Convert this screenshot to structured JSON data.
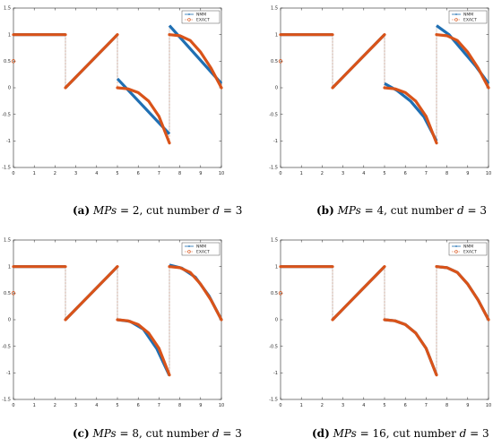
{
  "figure": {
    "legend_position": "top-right",
    "grid": false,
    "series_colors": {
      "NMM": "#1f6fb3",
      "EXACT": "#d95319"
    }
  },
  "captions": [
    {
      "label": "(a)",
      "math": "MPs",
      "rest": " = 2, cut number ",
      "d": "d",
      "value": " = 3"
    },
    {
      "label": "(b)",
      "math": "MPs",
      "rest": " = 4, cut number ",
      "d": "d",
      "value": " = 3"
    },
    {
      "label": "(c)",
      "math": "MPs",
      "rest": " = 8, cut number ",
      "d": "d",
      "value": " = 3"
    },
    {
      "label": "(d)",
      "math": "MPs",
      "rest": " = 16, cut number ",
      "d": "d",
      "value": " = 3"
    }
  ],
  "chart_data": [
    {
      "type": "line",
      "xlim": [
        0,
        10
      ],
      "ylim": [
        -1.5,
        1.5
      ],
      "xticks": [
        "0",
        "1",
        "2",
        "3",
        "4",
        "5",
        "6",
        "7",
        "8",
        "9",
        "10"
      ],
      "yticks": [
        "-1.5",
        "-1",
        "-0.5",
        "0",
        "0.5",
        "1",
        "1.5"
      ],
      "legend": [
        "NMM",
        "EXACT"
      ],
      "series": [
        {
          "name": "NMM",
          "segments": [
            [
              [
                0,
                1
              ],
              [
                2.5,
                1
              ]
            ],
            [
              [
                2.5,
                0
              ],
              [
                5,
                1
              ]
            ],
            [
              [
                5,
                0.17
              ],
              [
                7.5,
                -0.87
              ]
            ],
            [
              [
                7.5,
                1.17
              ],
              [
                10,
                0.08
              ]
            ]
          ]
        },
        {
          "name": "EXACT",
          "segments": [
            [
              [
                0,
                1
              ],
              [
                2.5,
                1
              ]
            ],
            [
              [
                2.5,
                0
              ],
              [
                5,
                1
              ]
            ],
            [
              [
                5,
                0
              ],
              [
                5.5,
                -0.02
              ],
              [
                6,
                -0.09
              ],
              [
                6.5,
                -0.25
              ],
              [
                7,
                -0.54
              ],
              [
                7.5,
                -1.04
              ]
            ],
            [
              [
                7.5,
                1
              ],
              [
                8,
                0.98
              ],
              [
                8.5,
                0.89
              ],
              [
                9,
                0.67
              ],
              [
                9.5,
                0.37
              ],
              [
                10,
                0
              ]
            ]
          ]
        }
      ]
    },
    {
      "type": "line",
      "xlim": [
        0,
        10
      ],
      "ylim": [
        -1.5,
        1.5
      ],
      "xticks": [
        "0",
        "1",
        "2",
        "3",
        "4",
        "5",
        "6",
        "7",
        "8",
        "9",
        "10"
      ],
      "yticks": [
        "-1.5",
        "-1",
        "-0.5",
        "0",
        "0.5",
        "1",
        "1.5"
      ],
      "legend": [
        "NMM",
        "EXACT"
      ],
      "series": [
        {
          "name": "NMM",
          "segments": [
            [
              [
                0,
                1
              ],
              [
                2.5,
                1
              ]
            ],
            [
              [
                2.5,
                0
              ],
              [
                5,
                1
              ]
            ],
            [
              [
                5,
                0.08
              ],
              [
                5.6,
                -0.05
              ],
              [
                6.25,
                -0.25
              ],
              [
                6.9,
                -0.55
              ],
              [
                7.5,
                -1.0
              ]
            ],
            [
              [
                7.5,
                1.17
              ],
              [
                8.1,
                1.0
              ],
              [
                8.75,
                0.7
              ],
              [
                9.4,
                0.4
              ],
              [
                10,
                0.08
              ]
            ]
          ]
        },
        {
          "name": "EXACT",
          "segments": [
            [
              [
                0,
                1
              ],
              [
                2.5,
                1
              ]
            ],
            [
              [
                2.5,
                0
              ],
              [
                5,
                1
              ]
            ],
            [
              [
                5,
                0
              ],
              [
                5.5,
                -0.02
              ],
              [
                6,
                -0.09
              ],
              [
                6.5,
                -0.25
              ],
              [
                7,
                -0.54
              ],
              [
                7.5,
                -1.04
              ]
            ],
            [
              [
                7.5,
                1
              ],
              [
                8,
                0.98
              ],
              [
                8.5,
                0.89
              ],
              [
                9,
                0.67
              ],
              [
                9.5,
                0.37
              ],
              [
                10,
                0
              ]
            ]
          ]
        }
      ]
    },
    {
      "type": "line",
      "xlim": [
        0,
        10
      ],
      "ylim": [
        -1.5,
        1.5
      ],
      "xticks": [
        "0",
        "1",
        "2",
        "3",
        "4",
        "5",
        "6",
        "7",
        "8",
        "9",
        "10"
      ],
      "yticks": [
        "-1.5",
        "-1",
        "-0.5",
        "0",
        "0.5",
        "1",
        "1.5"
      ],
      "legend": [
        "NMM",
        "EXACT"
      ],
      "series": [
        {
          "name": "NMM",
          "segments": [
            [
              [
                0,
                1
              ],
              [
                2.5,
                1
              ]
            ],
            [
              [
                2.5,
                0
              ],
              [
                5,
                1
              ]
            ],
            [
              [
                5,
                0
              ],
              [
                5.6,
                -0.03
              ],
              [
                6.25,
                -0.18
              ],
              [
                6.9,
                -0.55
              ],
              [
                7.5,
                -1.05
              ]
            ],
            [
              [
                7.5,
                1.03
              ],
              [
                8.1,
                0.97
              ],
              [
                8.75,
                0.8
              ],
              [
                9.4,
                0.45
              ],
              [
                10,
                0
              ]
            ]
          ]
        },
        {
          "name": "EXACT",
          "segments": [
            [
              [
                0,
                1
              ],
              [
                2.5,
                1
              ]
            ],
            [
              [
                2.5,
                0
              ],
              [
                5,
                1
              ]
            ],
            [
              [
                5,
                0
              ],
              [
                5.5,
                -0.02
              ],
              [
                6,
                -0.09
              ],
              [
                6.5,
                -0.25
              ],
              [
                7,
                -0.54
              ],
              [
                7.5,
                -1.04
              ]
            ],
            [
              [
                7.5,
                1
              ],
              [
                8,
                0.98
              ],
              [
                8.5,
                0.89
              ],
              [
                9,
                0.67
              ],
              [
                9.5,
                0.37
              ],
              [
                10,
                0
              ]
            ]
          ]
        }
      ]
    },
    {
      "type": "line",
      "xlim": [
        0,
        10
      ],
      "ylim": [
        -1.5,
        1.5
      ],
      "xticks": [
        "0",
        "1",
        "2",
        "3",
        "4",
        "5",
        "6",
        "7",
        "8",
        "9",
        "10"
      ],
      "yticks": [
        "-1.5",
        "-1",
        "-0.5",
        "0",
        "0.5",
        "1",
        "1.5"
      ],
      "legend": [
        "NMM",
        "EXACT"
      ],
      "series": [
        {
          "name": "NMM",
          "segments": [
            [
              [
                0,
                1
              ],
              [
                2.5,
                1
              ]
            ],
            [
              [
                2.5,
                0
              ],
              [
                5,
                1
              ]
            ],
            [
              [
                5,
                0
              ],
              [
                5.5,
                -0.02
              ],
              [
                6,
                -0.09
              ],
              [
                6.5,
                -0.25
              ],
              [
                7,
                -0.54
              ],
              [
                7.5,
                -1.04
              ]
            ],
            [
              [
                7.5,
                1
              ],
              [
                8,
                0.98
              ],
              [
                8.5,
                0.89
              ],
              [
                9,
                0.67
              ],
              [
                9.5,
                0.37
              ],
              [
                10,
                0
              ]
            ]
          ]
        },
        {
          "name": "EXACT",
          "segments": [
            [
              [
                0,
                1
              ],
              [
                2.5,
                1
              ]
            ],
            [
              [
                2.5,
                0
              ],
              [
                5,
                1
              ]
            ],
            [
              [
                5,
                0
              ],
              [
                5.5,
                -0.02
              ],
              [
                6,
                -0.09
              ],
              [
                6.5,
                -0.25
              ],
              [
                7,
                -0.54
              ],
              [
                7.5,
                -1.04
              ]
            ],
            [
              [
                7.5,
                1
              ],
              [
                8,
                0.98
              ],
              [
                8.5,
                0.89
              ],
              [
                9,
                0.67
              ],
              [
                9.5,
                0.37
              ],
              [
                10,
                0
              ]
            ]
          ]
        }
      ]
    }
  ]
}
